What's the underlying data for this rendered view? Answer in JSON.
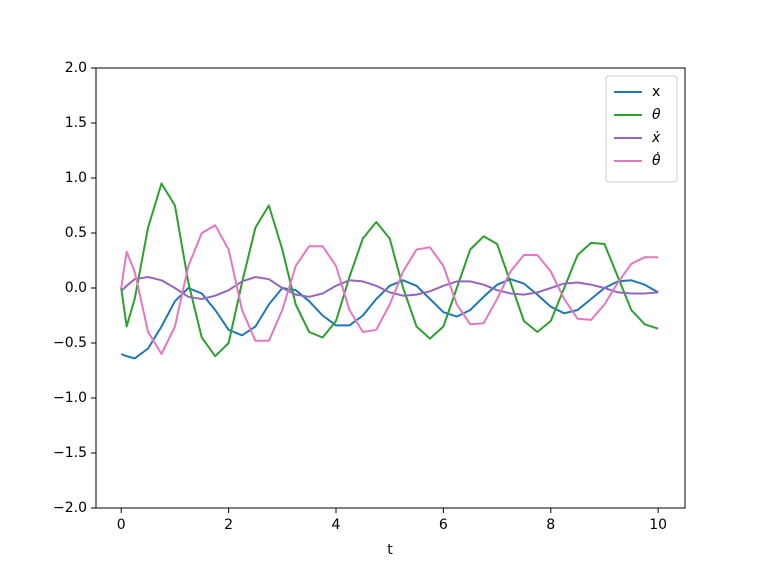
{
  "chart_data": {
    "type": "line",
    "x_label": "t",
    "x": [
      0,
      0.1,
      0.25,
      0.5,
      0.75,
      1,
      1.25,
      1.5,
      1.75,
      2,
      2.25,
      2.5,
      2.75,
      3,
      3.25,
      3.5,
      3.75,
      4,
      4.25,
      4.5,
      4.75,
      5,
      5.25,
      5.5,
      5.75,
      6,
      6.25,
      6.5,
      6.75,
      7,
      7.25,
      7.5,
      7.75,
      8,
      8.25,
      8.5,
      8.75,
      9,
      9.25,
      9.5,
      9.75,
      10
    ],
    "series": [
      {
        "name": "x",
        "color": "#1f77b4",
        "values": [
          -0.6,
          -0.62,
          -0.64,
          -0.55,
          -0.35,
          -0.12,
          0,
          -0.05,
          -0.2,
          -0.38,
          -0.43,
          -0.35,
          -0.15,
          0,
          -0.02,
          -0.12,
          -0.25,
          -0.34,
          -0.34,
          -0.25,
          -0.1,
          0.02,
          0.07,
          0.02,
          -0.1,
          -0.22,
          -0.26,
          -0.2,
          -0.08,
          0.03,
          0.08,
          0.04,
          -0.06,
          -0.17,
          -0.23,
          -0.2,
          -0.1,
          0,
          0.06,
          0.07,
          0.03,
          -0.04
        ]
      },
      {
        "name": "θ",
        "color": "#2ca02c",
        "values": [
          0,
          -0.35,
          -0.1,
          0.55,
          0.95,
          0.75,
          0.05,
          -0.45,
          -0.62,
          -0.5,
          0.05,
          0.55,
          0.75,
          0.35,
          -0.15,
          -0.4,
          -0.45,
          -0.3,
          0.1,
          0.45,
          0.6,
          0.45,
          0,
          -0.35,
          -0.46,
          -0.35,
          0,
          0.35,
          0.47,
          0.4,
          0.05,
          -0.3,
          -0.4,
          -0.3,
          0,
          0.3,
          0.41,
          0.4,
          0.1,
          -0.2,
          -0.33,
          -0.37
        ]
      },
      {
        "name": "ẋ",
        "color": "#9467bd",
        "values": [
          -0.03,
          0.02,
          0.08,
          0.1,
          0.07,
          0,
          -0.08,
          -0.1,
          -0.07,
          -0.02,
          0.06,
          0.1,
          0.08,
          0,
          -0.06,
          -0.08,
          -0.05,
          0.02,
          0.07,
          0.06,
          0.02,
          -0.04,
          -0.07,
          -0.06,
          -0.03,
          0.02,
          0.06,
          0.06,
          0.03,
          -0.02,
          -0.05,
          -0.06,
          -0.04,
          0,
          0.04,
          0.05,
          0.03,
          0,
          -0.04,
          -0.05,
          -0.05,
          -0.04
        ]
      },
      {
        "name": "θ̇",
        "color": "#e377c2",
        "values": [
          0,
          0.33,
          0.15,
          -0.4,
          -0.6,
          -0.35,
          0.2,
          0.5,
          0.57,
          0.35,
          -0.2,
          -0.48,
          -0.48,
          -0.2,
          0.2,
          0.38,
          0.38,
          0.2,
          -0.2,
          -0.4,
          -0.38,
          -0.15,
          0.15,
          0.35,
          0.37,
          0.2,
          -0.15,
          -0.33,
          -0.32,
          -0.1,
          0.15,
          0.3,
          0.3,
          0.15,
          -0.1,
          -0.28,
          -0.29,
          -0.15,
          0.05,
          0.22,
          0.28,
          0.28
        ]
      }
    ],
    "xlim": [
      -0.47,
      10.5
    ],
    "ylim": [
      -2,
      2
    ],
    "xticks": [
      0,
      2,
      4,
      6,
      8,
      10
    ],
    "yticks": [
      {
        "value": -2,
        "label": "−2.0"
      },
      {
        "value": -1.5,
        "label": "−1.5"
      },
      {
        "value": -1,
        "label": "−1.0"
      },
      {
        "value": -0.5,
        "label": "−0.5"
      },
      {
        "value": 0,
        "label": "0.0"
      },
      0.5,
      {
        "value": 1,
        "label": "1.0"
      },
      1.5,
      {
        "value": 2,
        "label": "2.0"
      }
    ],
    "legend": "upper right"
  }
}
